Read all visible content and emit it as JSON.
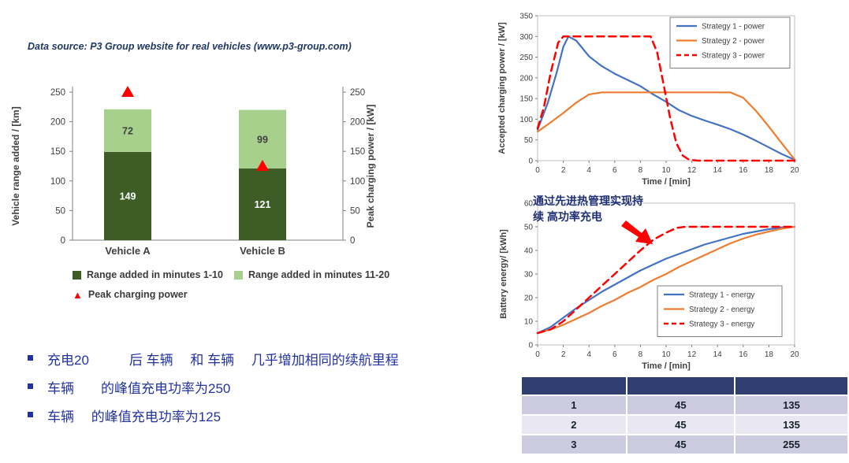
{
  "data_source": "Data source: P3 Group website for real vehicles (www.p3-group.com)",
  "bullets": [
    "充电20　　　后 车辆　 和 车辆　 几乎增加相同的续航里程",
    "车辆　　的峰值充电功率为250",
    "车辆　 的峰值充电功率为125"
  ],
  "annotation": {
    "text": "通过先进热管理实现持\n续 高功率充电"
  },
  "table": {
    "headers": [
      "",
      "",
      ""
    ],
    "rows": [
      [
        "1",
        "45",
        "135"
      ],
      [
        "2",
        "45",
        "135"
      ],
      [
        "3",
        "45",
        "255"
      ]
    ]
  },
  "colors": {
    "dark_green": "#3E5C26",
    "light_green": "#A8D08D",
    "marker_red": "#FF0000",
    "strategy1_blue": "#4472C4",
    "strategy2_orange": "#ED7D31",
    "strategy3_red": "#FF0000",
    "bullet_blue": "#2233A0",
    "table_header_navy": "#2F3E6E",
    "table_row_lavender": "#CDCBE0",
    "table_row_light": "#E9E8F2"
  },
  "chart_data": [
    {
      "id": "range_bar",
      "type": "bar",
      "stacked": true,
      "categories": [
        "Vehicle A",
        "Vehicle B"
      ],
      "series": [
        {
          "name": "Range added in minutes 1-10",
          "color": "#3E5C26",
          "values": [
            149,
            121
          ]
        },
        {
          "name": "Range added in minutes 11-20",
          "color": "#A8D08D",
          "values": [
            72,
            99
          ]
        }
      ],
      "markers": {
        "name": "Peak charging power",
        "color": "#FF0000",
        "shape": "triangle-up",
        "values": [
          250,
          125
        ]
      },
      "ylabel_left": "Vehicle range added / [km]",
      "ylabel_right": "Peak charging power / [kW]",
      "ylim": [
        0,
        250
      ],
      "yticks": [
        0,
        50,
        100,
        150,
        200,
        250
      ],
      "grid": false,
      "legend_position": "below"
    },
    {
      "id": "power_line",
      "type": "line",
      "xlabel": "Time / [min]",
      "ylabel": "Accepted charging power / [kW]",
      "xlim": [
        0,
        20
      ],
      "ylim": [
        0,
        350
      ],
      "xticks": [
        0,
        2,
        4,
        6,
        8,
        10,
        12,
        14,
        16,
        18,
        20
      ],
      "yticks": [
        0,
        50,
        100,
        150,
        200,
        250,
        300,
        350
      ],
      "grid": false,
      "legend_position": "upper right",
      "series": [
        {
          "name": "Strategy 1 - power",
          "color": "#4472C4",
          "dash": false,
          "points": [
            [
              0,
              75
            ],
            [
              0.8,
              140
            ],
            [
              1.5,
              215
            ],
            [
              2,
              275
            ],
            [
              2.4,
              300
            ],
            [
              3,
              290
            ],
            [
              4,
              252
            ],
            [
              5,
              228
            ],
            [
              6,
              210
            ],
            [
              7,
              195
            ],
            [
              8,
              180
            ],
            [
              9,
              160
            ],
            [
              10,
              142
            ],
            [
              11,
              122
            ],
            [
              12,
              108
            ],
            [
              13,
              97
            ],
            [
              14,
              87
            ],
            [
              15,
              76
            ],
            [
              16,
              63
            ],
            [
              17,
              48
            ],
            [
              18,
              32
            ],
            [
              19,
              16
            ],
            [
              20,
              2
            ]
          ]
        },
        {
          "name": "Strategy 2 - power",
          "color": "#ED7D31",
          "dash": false,
          "points": [
            [
              0,
              70
            ],
            [
              1,
              92
            ],
            [
              2,
              115
            ],
            [
              3,
              140
            ],
            [
              4,
              160
            ],
            [
              5,
              165
            ],
            [
              8,
              165
            ],
            [
              12,
              165
            ],
            [
              15,
              165
            ],
            [
              16,
              152
            ],
            [
              17,
              120
            ],
            [
              18,
              82
            ],
            [
              19,
              42
            ],
            [
              20,
              3
            ]
          ]
        },
        {
          "name": "Strategy 3 - power",
          "color": "#FF0000",
          "dash": true,
          "points": [
            [
              0,
              78
            ],
            [
              0.5,
              130
            ],
            [
              1,
              210
            ],
            [
              1.6,
              285
            ],
            [
              2,
              300
            ],
            [
              8.8,
              300
            ],
            [
              9.3,
              262
            ],
            [
              9.8,
              185
            ],
            [
              10.3,
              105
            ],
            [
              10.8,
              42
            ],
            [
              11.3,
              12
            ],
            [
              11.8,
              2
            ],
            [
              12.5,
              0
            ],
            [
              20,
              0
            ]
          ]
        }
      ]
    },
    {
      "id": "energy_line",
      "type": "line",
      "xlabel": "Time / [min]",
      "ylabel": "Battery energy/ [kWh]",
      "xlim": [
        0,
        20
      ],
      "ylim": [
        0,
        60
      ],
      "xticks": [
        0,
        2,
        4,
        6,
        8,
        10,
        12,
        14,
        16,
        18,
        20
      ],
      "yticks": [
        0,
        10,
        20,
        30,
        40,
        50,
        60
      ],
      "grid": false,
      "legend_position": "center right",
      "series": [
        {
          "name": "Strategy 1 - energy",
          "color": "#4472C4",
          "dash": false,
          "points": [
            [
              0,
              5
            ],
            [
              1,
              7.5
            ],
            [
              2,
              11.5
            ],
            [
              3,
              15.5
            ],
            [
              4,
              19
            ],
            [
              5,
              22.5
            ],
            [
              6,
              25.5
            ],
            [
              7,
              28.5
            ],
            [
              8,
              31.5
            ],
            [
              9,
              34
            ],
            [
              10,
              36.5
            ],
            [
              11,
              38.5
            ],
            [
              12,
              40.5
            ],
            [
              13,
              42.5
            ],
            [
              14,
              44
            ],
            [
              15,
              45.5
            ],
            [
              16,
              47
            ],
            [
              17,
              48
            ],
            [
              18,
              49
            ],
            [
              19,
              49.7
            ],
            [
              20,
              50
            ]
          ]
        },
        {
          "name": "Strategy 2 - energy",
          "color": "#ED7D31",
          "dash": false,
          "points": [
            [
              0,
              5
            ],
            [
              1,
              6.5
            ],
            [
              2,
              8.5
            ],
            [
              3,
              11
            ],
            [
              4,
              13.5
            ],
            [
              5,
              16.5
            ],
            [
              6,
              19
            ],
            [
              7,
              22
            ],
            [
              8,
              24.5
            ],
            [
              9,
              27.5
            ],
            [
              10,
              30
            ],
            [
              11,
              33
            ],
            [
              12,
              35.5
            ],
            [
              13,
              38
            ],
            [
              14,
              40.5
            ],
            [
              15,
              43
            ],
            [
              16,
              45
            ],
            [
              17,
              46.7
            ],
            [
              18,
              48
            ],
            [
              19,
              49.2
            ],
            [
              20,
              50
            ]
          ]
        },
        {
          "name": "Strategy 3 - energy",
          "color": "#FF0000",
          "dash": true,
          "points": [
            [
              0,
              5
            ],
            [
              1,
              6.5
            ],
            [
              2,
              10
            ],
            [
              3,
              15
            ],
            [
              4,
              20
            ],
            [
              5,
              25
            ],
            [
              6,
              30
            ],
            [
              7,
              35
            ],
            [
              8,
              40
            ],
            [
              9,
              44.5
            ],
            [
              10,
              47.5
            ],
            [
              10.8,
              49.5
            ],
            [
              11.5,
              50
            ],
            [
              14,
              50
            ],
            [
              17,
              50
            ],
            [
              20,
              50
            ]
          ]
        }
      ]
    }
  ]
}
